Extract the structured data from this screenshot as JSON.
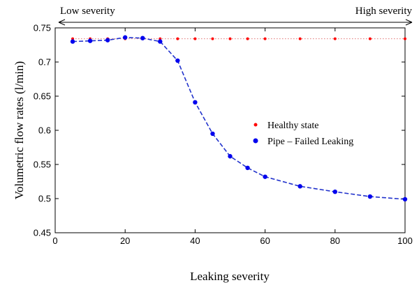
{
  "colors": {
    "healthy": "#ff0000",
    "healthy_line": "#e07070",
    "failed": "#0000ee",
    "failed_line": "#2233cc",
    "axis": "#000000"
  },
  "chart_data": {
    "type": "line",
    "title": "",
    "xlabel": "Leaking severity",
    "ylabel": "Volumetric flow rates (l/min)",
    "xlim": [
      0,
      100
    ],
    "ylim": [
      0.45,
      0.75
    ],
    "xticks": [
      0,
      20,
      40,
      60,
      80,
      100
    ],
    "yticks": [
      0.45,
      0.5,
      0.55,
      0.6,
      0.65,
      0.7,
      0.75
    ],
    "xtick_labels": [
      "0",
      "20",
      "40",
      "60",
      "80",
      "100"
    ],
    "ytick_labels": [
      "0.45",
      "0.5",
      "0.55",
      "0.6",
      "0.65",
      "0.7",
      "0.75"
    ],
    "grid": false,
    "legend_placement": "center-right",
    "severity_arrow": {
      "left_label": "Low severity",
      "right_label": "High severity"
    },
    "series": [
      {
        "name": "Healthy state",
        "style": "dotted",
        "marker": "small-dot",
        "x": [
          5,
          10,
          15,
          20,
          25,
          30,
          35,
          40,
          45,
          50,
          55,
          60,
          70,
          80,
          90,
          100
        ],
        "y": [
          0.734,
          0.734,
          0.734,
          0.734,
          0.734,
          0.734,
          0.734,
          0.734,
          0.734,
          0.734,
          0.734,
          0.734,
          0.734,
          0.734,
          0.734,
          0.734
        ]
      },
      {
        "name": "Pipe – Failed Leaking",
        "style": "dashed",
        "marker": "dot",
        "x": [
          5,
          10,
          15,
          20,
          25,
          30,
          35,
          40,
          45,
          50,
          55,
          60,
          70,
          80,
          90,
          100
        ],
        "y": [
          0.73,
          0.731,
          0.732,
          0.736,
          0.735,
          0.73,
          0.702,
          0.641,
          0.595,
          0.562,
          0.545,
          0.532,
          0.518,
          0.51,
          0.503,
          0.499
        ]
      }
    ]
  }
}
